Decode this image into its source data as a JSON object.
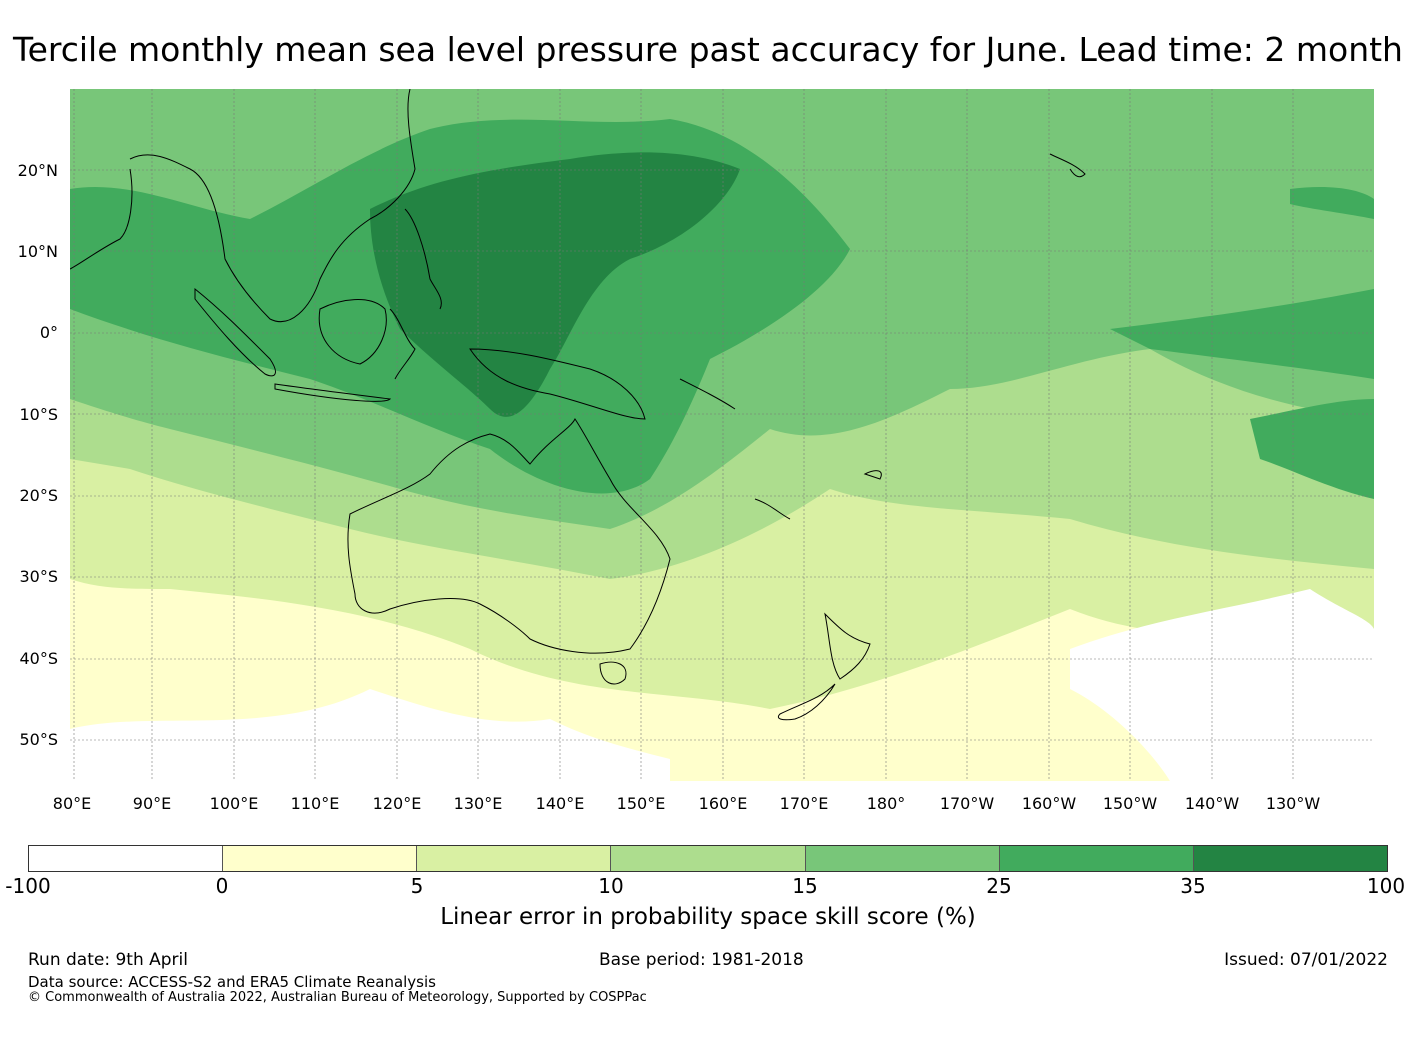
{
  "title": "Tercile monthly mean sea level pressure past accuracy for June. Lead time: 2 month",
  "map": {
    "lat_labels": [
      "20°N",
      "10°N",
      "0°",
      "10°S",
      "20°S",
      "30°S",
      "40°S",
      "50°S"
    ],
    "lon_labels": [
      "80°E",
      "90°E",
      "100°E",
      "110°E",
      "120°E",
      "130°E",
      "140°E",
      "150°E",
      "160°E",
      "170°E",
      "180°",
      "170°W",
      "160°W",
      "150°W",
      "140°W",
      "130°W"
    ],
    "region": "Indo-Pacific / Australia",
    "lon_range": [
      80,
      240
    ],
    "lat_range": [
      -55,
      30
    ]
  },
  "colorbar": {
    "ticks": [
      "-100",
      "0",
      "5",
      "10",
      "15",
      "25",
      "35",
      "100"
    ],
    "colors": [
      "#ffffff",
      "#ffffcc",
      "#d9f0a3",
      "#addd8e",
      "#78c679",
      "#41ab5d",
      "#238443"
    ],
    "label": "Linear error in probability space skill score (%)"
  },
  "footer": {
    "run_date": "Run date: 9th April",
    "base_period": "Base period: 1981-2018",
    "issued": "Issued: 07/01/2022",
    "data_source": "Data source: ACCESS-S2 and ERA5 Climate Reanalysis",
    "copyright": "© Commonwealth of Australia 2022, Australian Bureau of Meteorology, Supported by COSPPac"
  }
}
